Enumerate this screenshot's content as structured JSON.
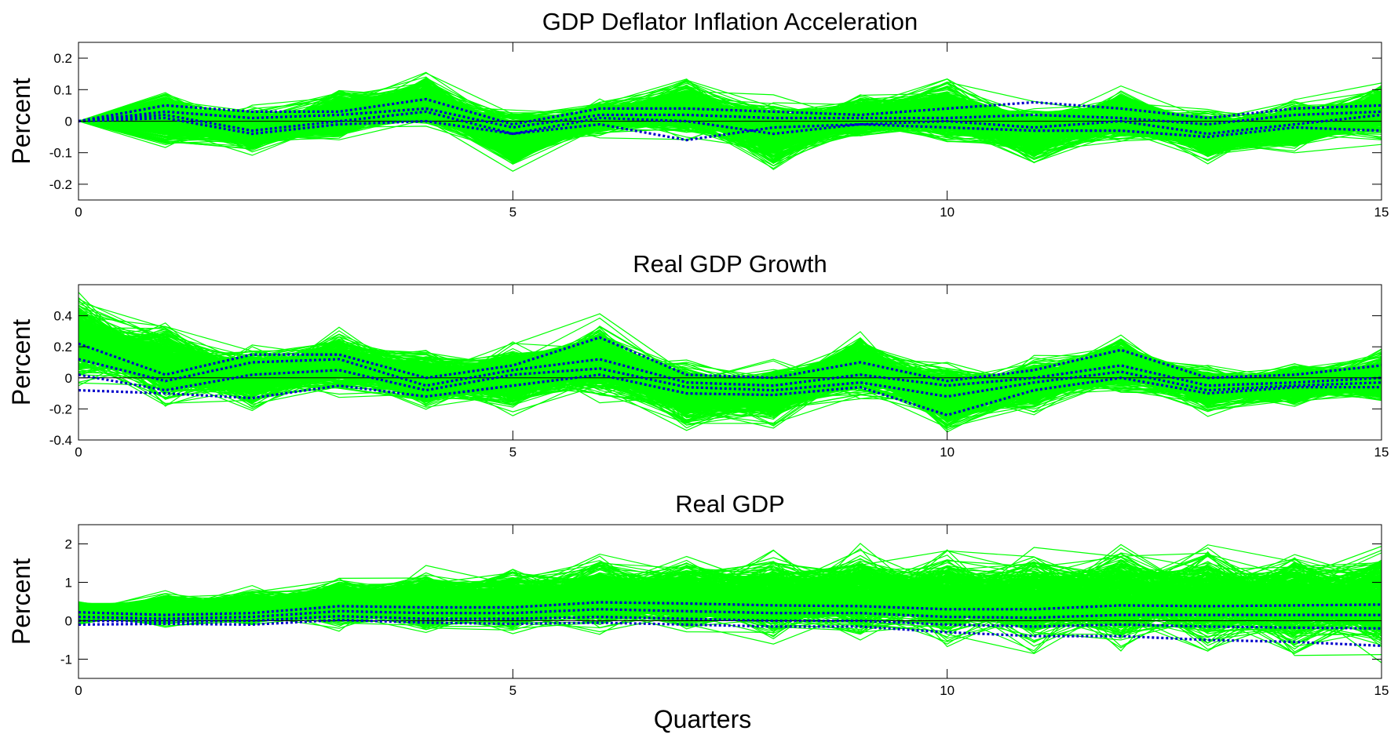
{
  "figure": {
    "xlabel": "Quarters"
  },
  "colors": {
    "draws": "#00ff00",
    "quantiles": "#0000cc",
    "zero_line": "#000000",
    "axes": "#000000"
  },
  "chart_data": [
    {
      "type": "line",
      "title": "GDP Deflator Inflation Acceleration",
      "ylabel": "Percent",
      "xlabel": "",
      "xlim": [
        0,
        15
      ],
      "ylim": [
        -0.25,
        0.25
      ],
      "xticks": [
        0,
        5,
        10,
        15
      ],
      "yticks": [
        -0.2,
        -0.1,
        0,
        0.1,
        0.2
      ],
      "ytick_labels": [
        "-0.2",
        "-0.1",
        "0",
        "0.1",
        "0.2"
      ],
      "x": [
        0,
        1,
        2,
        3,
        4,
        5,
        6,
        7,
        8,
        9,
        10,
        11,
        12,
        13,
        14,
        15
      ],
      "draw_band": {
        "upper": [
          0,
          0.11,
          0.05,
          0.1,
          0.16,
          0.05,
          0.07,
          0.15,
          0.08,
          0.1,
          0.14,
          0.06,
          0.12,
          0.05,
          0.07,
          0.13
        ],
        "lower": [
          0,
          -0.09,
          -0.11,
          -0.07,
          -0.03,
          -0.16,
          -0.05,
          -0.06,
          -0.16,
          -0.07,
          -0.08,
          -0.15,
          -0.08,
          -0.14,
          -0.1,
          -0.07
        ],
        "n_draws": 500
      },
      "series": [
        {
          "values": [
            0,
            0.05,
            0.03,
            0.03,
            0.07,
            -0.01,
            0.04,
            0.04,
            0.03,
            0.02,
            0.04,
            0.06,
            0.04,
            0.01,
            0.04,
            0.05
          ]
        },
        {
          "values": [
            0,
            0.03,
            0.01,
            0.02,
            0.04,
            -0.02,
            0.02,
            0.02,
            0.01,
            0.01,
            0.01,
            0.02,
            0.01,
            -0.01,
            0.02,
            0.03
          ]
        },
        {
          "values": [
            0,
            0.02,
            -0.03,
            0.0,
            0.03,
            -0.04,
            0.01,
            0.0,
            -0.04,
            -0.01,
            0.0,
            -0.02,
            0.0,
            -0.04,
            -0.01,
            0.02
          ]
        },
        {
          "values": [
            0,
            0.01,
            -0.04,
            -0.01,
            0.0,
            -0.04,
            -0.01,
            -0.06,
            -0.02,
            -0.01,
            -0.02,
            -0.03,
            -0.03,
            -0.05,
            -0.02,
            -0.03
          ]
        }
      ]
    },
    {
      "type": "line",
      "title": "Real GDP Growth",
      "ylabel": "Percent",
      "xlabel": "",
      "xlim": [
        0,
        15
      ],
      "ylim": [
        -0.4,
        0.6
      ],
      "xticks": [
        0,
        5,
        10,
        15
      ],
      "yticks": [
        -0.4,
        -0.2,
        0,
        0.2,
        0.4
      ],
      "ytick_labels": [
        "-0.4",
        "-0.2",
        "0",
        "0.2",
        "0.4"
      ],
      "x": [
        0,
        1,
        2,
        3,
        4,
        5,
        6,
        7,
        8,
        9,
        10,
        11,
        12,
        13,
        14,
        15
      ],
      "draw_band": {
        "upper": [
          0.58,
          0.38,
          0.22,
          0.33,
          0.2,
          0.25,
          0.4,
          0.15,
          0.12,
          0.3,
          0.12,
          0.15,
          0.3,
          0.1,
          0.12,
          0.18
        ],
        "lower": [
          -0.06,
          -0.2,
          -0.22,
          -0.12,
          -0.22,
          -0.25,
          -0.15,
          -0.35,
          -0.32,
          -0.15,
          -0.38,
          -0.25,
          -0.12,
          -0.25,
          -0.2,
          -0.18
        ]
      },
      "series": [
        {
          "values": [
            0.22,
            0.02,
            0.15,
            0.15,
            0.0,
            0.08,
            0.26,
            0.02,
            0.0,
            0.1,
            -0.02,
            0.05,
            0.18,
            0.0,
            0.02,
            0.08
          ]
        },
        {
          "values": [
            0.12,
            -0.02,
            0.1,
            0.12,
            -0.05,
            0.05,
            0.12,
            -0.03,
            -0.05,
            0.02,
            -0.05,
            0.0,
            0.08,
            -0.05,
            -0.03,
            0.0
          ]
        },
        {
          "values": [
            0.02,
            -0.08,
            0.02,
            0.05,
            -0.08,
            0.02,
            0.06,
            -0.06,
            -0.08,
            -0.03,
            -0.12,
            -0.03,
            0.04,
            -0.08,
            -0.05,
            -0.03
          ]
        },
        {
          "values": [
            -0.08,
            -0.1,
            -0.13,
            -0.05,
            -0.12,
            -0.05,
            0.02,
            -0.1,
            -0.11,
            -0.06,
            -0.24,
            -0.08,
            0.0,
            -0.1,
            -0.06,
            -0.06
          ]
        }
      ]
    },
    {
      "type": "line",
      "title": "Real GDP",
      "ylabel": "Percent",
      "xlabel": "Quarters",
      "xlim": [
        0,
        15
      ],
      "ylim": [
        -1.5,
        2.5
      ],
      "xticks": [
        0,
        5,
        10,
        15
      ],
      "yticks": [
        -1,
        0,
        1,
        2
      ],
      "ytick_labels": [
        "-1",
        "0",
        "1",
        "2"
      ],
      "x": [
        0,
        1,
        2,
        3,
        4,
        5,
        6,
        7,
        8,
        9,
        10,
        11,
        12,
        13,
        14,
        15
      ],
      "draw_band": {
        "upper": [
          0.55,
          0.8,
          0.9,
          1.2,
          1.4,
          1.45,
          1.8,
          1.8,
          1.8,
          2.0,
          1.95,
          1.9,
          2.1,
          2.05,
          2.05,
          2.15
        ],
        "lower": [
          -0.15,
          -0.2,
          -0.2,
          -0.25,
          -0.35,
          -0.4,
          -0.45,
          -0.5,
          -0.6,
          -0.65,
          -0.75,
          -0.8,
          -0.85,
          -0.9,
          -1.0,
          -1.05
        ]
      },
      "series": [
        {
          "values": [
            0.22,
            0.15,
            0.2,
            0.38,
            0.35,
            0.35,
            0.48,
            0.45,
            0.4,
            0.38,
            0.3,
            0.3,
            0.4,
            0.38,
            0.4,
            0.42
          ]
        },
        {
          "values": [
            0.1,
            0.05,
            0.1,
            0.25,
            0.2,
            0.2,
            0.3,
            0.25,
            0.2,
            0.2,
            0.1,
            0.08,
            0.15,
            0.15,
            0.15,
            0.15
          ]
        },
        {
          "values": [
            0.0,
            -0.02,
            0.0,
            0.12,
            0.05,
            0.05,
            0.1,
            0.05,
            0.0,
            0.0,
            -0.1,
            -0.15,
            -0.1,
            -0.15,
            -0.18,
            -0.2
          ]
        },
        {
          "values": [
            -0.1,
            -0.08,
            -0.1,
            0.02,
            -0.05,
            -0.08,
            -0.05,
            -0.1,
            -0.15,
            -0.15,
            -0.3,
            -0.4,
            -0.4,
            -0.5,
            -0.55,
            -0.65
          ]
        }
      ]
    }
  ]
}
